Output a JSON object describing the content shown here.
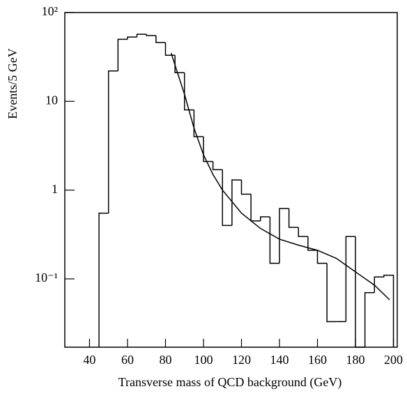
{
  "chart_data": {
    "type": "histogram",
    "x_label": "Transverse mass of QCD background (GeV)",
    "y_label": "Events/5 GeV",
    "bins": [
      45,
      50,
      55,
      60,
      65,
      70,
      75,
      80,
      85,
      90,
      95,
      100,
      105,
      110,
      115,
      120,
      125,
      130,
      135,
      140,
      145,
      150,
      155,
      160,
      165,
      170,
      175,
      180,
      185,
      190,
      195,
      200
    ],
    "counts": [
      0.55,
      22,
      50,
      53,
      57,
      55,
      46,
      33,
      21,
      8,
      4,
      2.1,
      1.7,
      0.4,
      1.3,
      0.9,
      0.45,
      0.5,
      0.15,
      0.62,
      0.38,
      0.3,
      0.21,
      0.15,
      0.033,
      0.033,
      0.3,
      0,
      0.07,
      0.105,
      0.11
    ],
    "color": "#000000",
    "curve": {
      "x": [
        83,
        86,
        90,
        95,
        100,
        105,
        110,
        120,
        130,
        140,
        150,
        160,
        170,
        180,
        190,
        198
      ],
      "y": [
        35,
        22,
        12,
        5,
        2.5,
        1.5,
        1.0,
        0.55,
        0.37,
        0.28,
        0.24,
        0.21,
        0.17,
        0.12,
        0.085,
        0.058
      ]
    },
    "xlim": [
      27,
      202
    ],
    "ylim": [
      0.017,
      100
    ],
    "log_y": true,
    "xticks": [
      40,
      60,
      80,
      100,
      120,
      140,
      160,
      180,
      200
    ],
    "yticks": [
      {
        "value": 0.1,
        "label": "10⁻¹"
      },
      1,
      10,
      {
        "value": 100,
        "label": "10²"
      }
    ]
  }
}
